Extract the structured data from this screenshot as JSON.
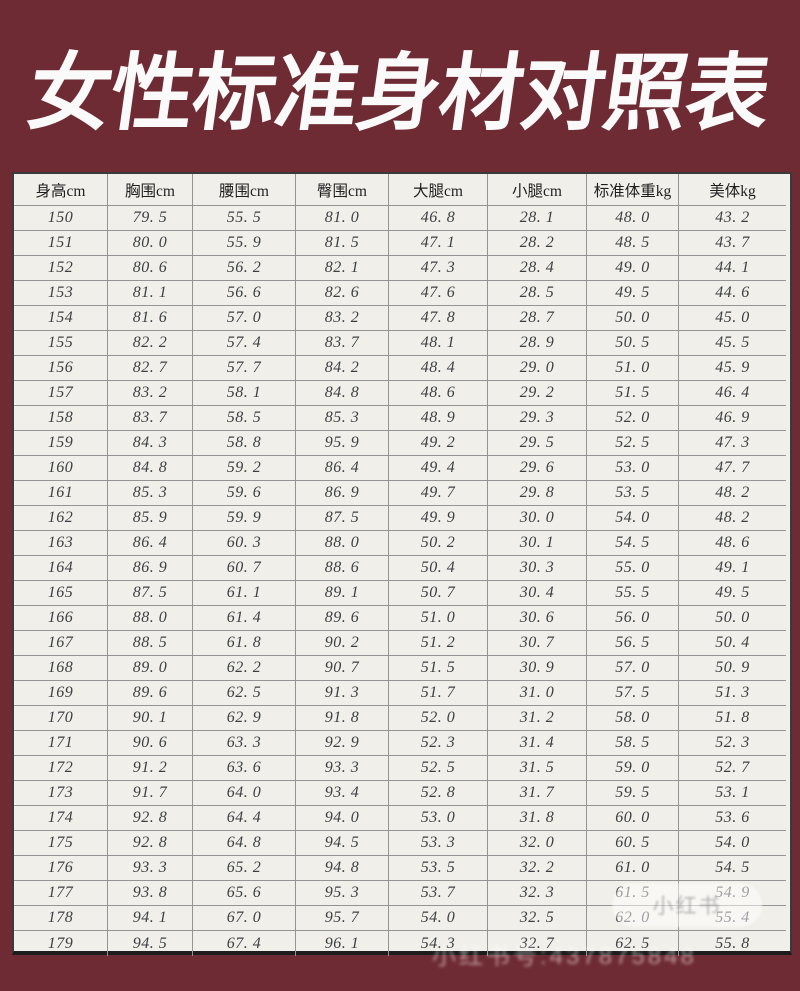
{
  "title": "女性标准身材对照表",
  "table": {
    "headers": [
      "身高cm",
      "胸围cm",
      "腰围cm",
      "臀围cm",
      "大腿cm",
      "小腿cm",
      "标准体重kg",
      "美体kg"
    ],
    "rows": [
      [
        "150",
        "79.5",
        "55.5",
        "81.0",
        "46.8",
        "28.1",
        "48.0",
        "43.2"
      ],
      [
        "151",
        "80.0",
        "55.9",
        "81.5",
        "47.1",
        "28.2",
        "48.5",
        "43.7"
      ],
      [
        "152",
        "80.6",
        "56.2",
        "82.1",
        "47.3",
        "28.4",
        "49.0",
        "44.1"
      ],
      [
        "153",
        "81.1",
        "56.6",
        "82.6",
        "47.6",
        "28.5",
        "49.5",
        "44.6"
      ],
      [
        "154",
        "81.6",
        "57.0",
        "83.2",
        "47.8",
        "28.7",
        "50.0",
        "45.0"
      ],
      [
        "155",
        "82.2",
        "57.4",
        "83.7",
        "48.1",
        "28.9",
        "50.5",
        "45.5"
      ],
      [
        "156",
        "82.7",
        "57.7",
        "84.2",
        "48.4",
        "29.0",
        "51.0",
        "45.9"
      ],
      [
        "157",
        "83.2",
        "58.1",
        "84.8",
        "48.6",
        "29.2",
        "51.5",
        "46.4"
      ],
      [
        "158",
        "83.7",
        "58.5",
        "85.3",
        "48.9",
        "29.3",
        "52.0",
        "46.9"
      ],
      [
        "159",
        "84.3",
        "58.8",
        "95.9",
        "49.2",
        "29.5",
        "52.5",
        "47.3"
      ],
      [
        "160",
        "84.8",
        "59.2",
        "86.4",
        "49.4",
        "29.6",
        "53.0",
        "47.7"
      ],
      [
        "161",
        "85.3",
        "59.6",
        "86.9",
        "49.7",
        "29.8",
        "53.5",
        "48.2"
      ],
      [
        "162",
        "85.9",
        "59.9",
        "87.5",
        "49.9",
        "30.0",
        "54.0",
        "48.2"
      ],
      [
        "163",
        "86.4",
        "60.3",
        "88.0",
        "50.2",
        "30.1",
        "54.5",
        "48.6"
      ],
      [
        "164",
        "86.9",
        "60.7",
        "88.6",
        "50.4",
        "30.3",
        "55.0",
        "49.1"
      ],
      [
        "165",
        "87.5",
        "61.1",
        "89.1",
        "50.7",
        "30.4",
        "55.5",
        "49.5"
      ],
      [
        "166",
        "88.0",
        "61.4",
        "89.6",
        "51.0",
        "30.6",
        "56.0",
        "50.0"
      ],
      [
        "167",
        "88.5",
        "61.8",
        "90.2",
        "51.2",
        "30.7",
        "56.5",
        "50.4"
      ],
      [
        "168",
        "89.0",
        "62.2",
        "90.7",
        "51.5",
        "30.9",
        "57.0",
        "50.9"
      ],
      [
        "169",
        "89.6",
        "62.5",
        "91.3",
        "51.7",
        "31.0",
        "57.5",
        "51.3"
      ],
      [
        "170",
        "90.1",
        "62.9",
        "91.8",
        "52.0",
        "31.2",
        "58.0",
        "51.8"
      ],
      [
        "171",
        "90.6",
        "63.3",
        "92.9",
        "52.3",
        "31.4",
        "58.5",
        "52.3"
      ],
      [
        "172",
        "91.2",
        "63.6",
        "93.3",
        "52.5",
        "31.5",
        "59.0",
        "52.7"
      ],
      [
        "173",
        "91.7",
        "64.0",
        "93.4",
        "52.8",
        "31.7",
        "59.5",
        "53.1"
      ],
      [
        "174",
        "92.8",
        "64.4",
        "94.0",
        "53.0",
        "31.8",
        "60.0",
        "53.6"
      ],
      [
        "175",
        "92.8",
        "64.8",
        "94.5",
        "53.3",
        "32.0",
        "60.5",
        "54.0"
      ],
      [
        "176",
        "93.3",
        "65.2",
        "94.8",
        "53.5",
        "32.2",
        "61.0",
        "54.5"
      ],
      [
        "177",
        "93.8",
        "65.6",
        "95.3",
        "53.7",
        "32.3",
        "61.5",
        "54.9"
      ],
      [
        "178",
        "94.1",
        "67.0",
        "95.7",
        "54.0",
        "32.5",
        "62.0",
        "55.4"
      ],
      [
        "179",
        "94.5",
        "67.4",
        "96.1",
        "54.3",
        "32.7",
        "62.5",
        "55.8"
      ]
    ]
  },
  "watermark": {
    "badge_text": "小红书",
    "id_text": "小红书号:437875848"
  }
}
